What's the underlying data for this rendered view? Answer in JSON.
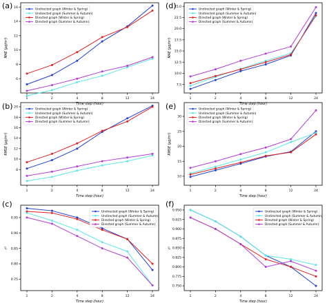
{
  "colors": {
    "uws": "#1f3fd0",
    "usa": "#5ce6e6",
    "dws": "#e02020",
    "dsa": "#b23cd8",
    "axis": "#000000",
    "legend_border": "#cccccc"
  },
  "chart_data": [
    {
      "panel": "(a)",
      "type": "line",
      "ylabel": "MAE (μg/m³)",
      "xlabel": "Time step (hour)",
      "categories": [
        "1",
        "2",
        "4",
        "8",
        "12",
        "24"
      ],
      "yticks": [
        "6",
        "8",
        "10",
        "12",
        "14",
        "16"
      ],
      "ylim": [
        4,
        16.6
      ],
      "legend": "top-left",
      "series": [
        {
          "name": "Undirected graph (Winter & Spring)",
          "values": [
            5.2,
            6.5,
            8.5,
            11.2,
            13.3,
            16.2
          ]
        },
        {
          "name": "Undirected graph (Summer & Autumn)",
          "values": [
            3.6,
            4.4,
            5.5,
            6.4,
            7.6,
            8.8
          ]
        },
        {
          "name": "Directed graph (Winter & Spring)",
          "values": [
            6.7,
            7.9,
            9.7,
            11.8,
            13.2,
            15.5
          ]
        },
        {
          "name": "Directed graph (Summer & Autumn)",
          "values": [
            4.3,
            5.1,
            6.0,
            7.0,
            7.8,
            9.0
          ]
        }
      ]
    },
    {
      "panel": "(b)",
      "type": "line",
      "ylabel": "RMSE (μg/m³)",
      "xlabel": "Time step (hour)",
      "categories": [
        "1",
        "2",
        "4",
        "8",
        "12",
        "24"
      ],
      "yticks": [
        "8",
        "10",
        "12",
        "14",
        "16",
        "18",
        "20"
      ],
      "ylim": [
        5,
        20.8
      ],
      "legend": "top-left",
      "series": [
        {
          "name": "Undirected graph (Winter & Spring)",
          "values": [
            8.2,
            9.8,
            12.0,
            15.2,
            17.8,
            20.2
          ]
        },
        {
          "name": "Undirected graph (Summer & Autumn)",
          "values": [
            5.8,
            6.6,
            7.8,
            8.8,
            9.6,
            10.7
          ]
        },
        {
          "name": "Directed graph (Winter & Spring)",
          "values": [
            9.4,
            11.0,
            13.0,
            15.4,
            17.2,
            20.0
          ]
        },
        {
          "name": "Directed graph (Summer & Autumn)",
          "values": [
            6.8,
            7.6,
            8.6,
            9.6,
            10.3,
            11.0
          ]
        }
      ]
    },
    {
      "panel": "(c)",
      "type": "line",
      "ylabel": "r²",
      "xlabel": "Time step (hour)",
      "categories": [
        "1",
        "2",
        "4",
        "8",
        "12",
        "24"
      ],
      "yticks": [
        "0.75",
        "0.80",
        "0.85",
        "0.90",
        "0.95"
      ],
      "ylim": [
        0.713,
        0.99
      ],
      "legend": "top-right",
      "series": [
        {
          "name": "Undirected graph (Winter & Spring)",
          "values": [
            0.98,
            0.972,
            0.95,
            0.915,
            0.88,
            0.78
          ]
        },
        {
          "name": "Undirected graph (Summer & Autumn)",
          "values": [
            0.965,
            0.94,
            0.91,
            0.87,
            0.84,
            0.73
          ]
        },
        {
          "name": "Directed graph (Winter & Spring)",
          "values": [
            0.97,
            0.965,
            0.945,
            0.91,
            0.88,
            0.8
          ]
        },
        {
          "name": "Directed graph (Summer & Autumn)",
          "values": [
            0.95,
            0.93,
            0.89,
            0.85,
            0.82,
            0.73
          ]
        }
      ]
    },
    {
      "panel": "(d)",
      "type": "line",
      "ylabel": "MAE (μg/m³)",
      "xlabel": "Time step (hour)",
      "categories": [
        "1",
        "2",
        "4",
        "8",
        "12",
        "24"
      ],
      "yticks": [
        "7.5",
        "10.0",
        "12.5",
        "15.0",
        "17.5",
        "20.0",
        "22.5",
        "25.0"
      ],
      "ylim": [
        5.6,
        25.8
      ],
      "legend": "top-left",
      "series": [
        {
          "name": "Undirected graph (Winter & Spring)",
          "values": [
            6.5,
            8.5,
            10.5,
            12.0,
            14.0,
            23.5
          ]
        },
        {
          "name": "Undirected graph (Summer & Autumn)",
          "values": [
            7.2,
            9.2,
            11.0,
            12.8,
            14.5,
            22.8
          ]
        },
        {
          "name": "Directed graph (Winter & Spring)",
          "values": [
            7.8,
            9.4,
            10.9,
            12.5,
            14.2,
            23.0
          ]
        },
        {
          "name": "Directed graph (Summer & Autumn)",
          "values": [
            9.3,
            10.9,
            12.8,
            14.4,
            16.0,
            24.8
          ]
        }
      ]
    },
    {
      "panel": "(e)",
      "type": "line",
      "ylabel": "RMSE (μg/m³)",
      "xlabel": "Time step (hour)",
      "categories": [
        "1",
        "2",
        "4",
        "8",
        "12",
        "24"
      ],
      "yticks": [
        "10",
        "15",
        "20",
        "25",
        "30"
      ],
      "ylim": [
        7,
        34.6
      ],
      "legend": "top-left",
      "series": [
        {
          "name": "Undirected graph (Winter & Spring)",
          "values": [
            9.8,
            12.0,
            14.2,
            16.6,
            18.2,
            25.0
          ]
        },
        {
          "name": "Undirected graph (Summer & Autumn)",
          "values": [
            11.0,
            13.2,
            15.6,
            18.0,
            21.4,
            24.5
          ]
        },
        {
          "name": "Directed graph (Winter & Spring)",
          "values": [
            10.6,
            12.6,
            14.6,
            16.8,
            18.0,
            24.0
          ]
        },
        {
          "name": "Directed graph (Summer & Autumn)",
          "values": [
            12.8,
            15.0,
            17.4,
            19.6,
            22.4,
            32.0
          ]
        }
      ]
    },
    {
      "panel": "(f)",
      "type": "line",
      "ylabel": "r²",
      "xlabel": "Time step (hour)",
      "categories": [
        "1",
        "2",
        "4",
        "8",
        "12",
        "24"
      ],
      "yticks": [
        "0.750",
        "0.775",
        "0.800",
        "0.825",
        "0.850",
        "0.875",
        "0.900",
        "0.925",
        "0.950"
      ],
      "ylim": [
        0.7375,
        0.9625
      ],
      "legend": "top-right",
      "series": [
        {
          "name": "Undirected graph (Winter & Spring)",
          "values": [
            0.95,
            0.92,
            0.88,
            0.83,
            0.8,
            0.75
          ]
        },
        {
          "name": "Undirected graph (Summer & Autumn)",
          "values": [
            0.95,
            0.92,
            0.88,
            0.83,
            0.82,
            0.805
          ]
        },
        {
          "name": "Directed graph (Winter & Spring)",
          "values": [
            0.93,
            0.9,
            0.86,
            0.82,
            0.8,
            0.775
          ]
        },
        {
          "name": "Directed graph (Summer & Autumn)",
          "values": [
            0.93,
            0.9,
            0.86,
            0.8,
            0.815,
            0.79
          ]
        }
      ]
    }
  ]
}
